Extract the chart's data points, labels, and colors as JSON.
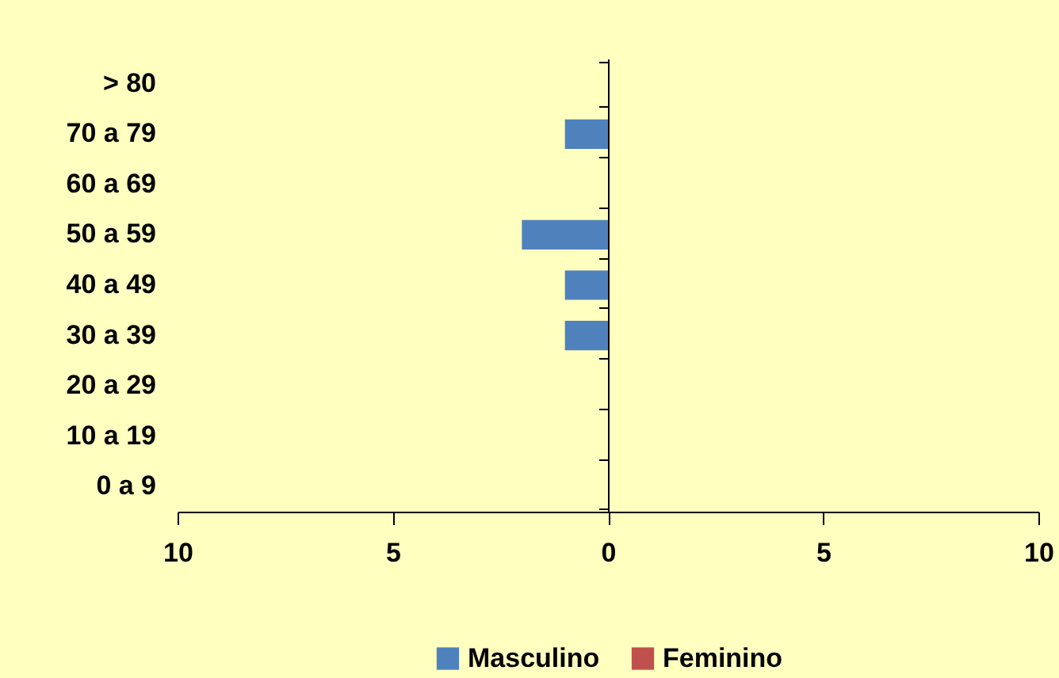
{
  "chart_data": {
    "type": "bar",
    "orientation": "horizontal",
    "categories": [
      "> 80",
      "70 a 79",
      "60 a 69",
      "50 a 59",
      "40 a 49",
      "30 a 39",
      "20 a 29",
      "10 a 19",
      "0 a 9"
    ],
    "series": [
      {
        "name": "Masculino",
        "color": "#4f81bd",
        "values": [
          0,
          -1,
          0,
          -2,
          -1,
          -1,
          0,
          0,
          0
        ]
      },
      {
        "name": "Feminino",
        "color": "#c0504d",
        "values": [
          0,
          0,
          0,
          0,
          0,
          0,
          0,
          0,
          0
        ]
      }
    ],
    "xlim": [
      -10,
      10
    ],
    "xticks": [
      {
        "value": -10,
        "label": "10"
      },
      {
        "value": -5,
        "label": "5"
      },
      0,
      5,
      10
    ],
    "legend": "bottom"
  }
}
